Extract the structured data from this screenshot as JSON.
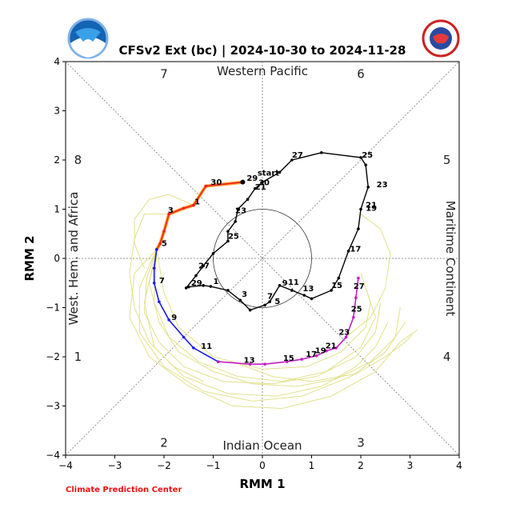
{
  "chart_data": {
    "type": "line",
    "title": "CFSv2 Ext (bc) | 2024-10-30 to 2024-11-28",
    "xlabel": "RMM 1",
    "ylabel": "RMM 2",
    "xlim": [
      -4,
      4
    ],
    "ylim": [
      -4,
      4
    ],
    "xticks": [
      "−4",
      "−3",
      "−2",
      "−1",
      "0",
      "1",
      "2",
      "3",
      "4"
    ],
    "yticks": [
      "−4",
      "−3",
      "−2",
      "−1",
      "0",
      "1",
      "2",
      "3",
      "4"
    ],
    "phases": [
      {
        "label": "1",
        "x": -3.75,
        "y": -2.0
      },
      {
        "label": "2",
        "x": -2.0,
        "y": -3.75
      },
      {
        "label": "3",
        "x": 2.0,
        "y": -3.75
      },
      {
        "label": "4",
        "x": 3.75,
        "y": -2.0
      },
      {
        "label": "5",
        "x": 3.75,
        "y": 2.0
      },
      {
        "label": "6",
        "x": 2.0,
        "y": 3.75
      },
      {
        "label": "7",
        "x": -2.0,
        "y": 3.75
      },
      {
        "label": "8",
        "x": -3.75,
        "y": 2.0
      }
    ],
    "regions": {
      "top": "Western Pacific",
      "bottom": "Indian Ocean",
      "left": "West. Hem. and Africa",
      "right": "Maritime Continent"
    },
    "credit": "Climate Prediction Center",
    "logos": {
      "left": "NOAA",
      "right": "NATIONAL WEATHER SERVICE"
    },
    "colors": {
      "observed": "#000000",
      "fc_red": "#ee2222",
      "fc_orange": "#ff8800",
      "fc_blue": "#1a1aee",
      "fc_magenta": "#c020c0",
      "ensemble": "#dede80"
    },
    "observed": {
      "points": [
        [
          -1.5,
          -0.58
        ],
        [
          -1.2,
          -0.55
        ],
        [
          -1.05,
          -0.57
        ],
        [
          -0.7,
          -0.65
        ],
        [
          -0.45,
          -0.85
        ],
        [
          -0.25,
          -1.05
        ],
        [
          0.05,
          -0.95
        ],
        [
          0.15,
          -0.88
        ],
        [
          0.35,
          -0.55
        ],
        [
          0.6,
          -0.65
        ],
        [
          0.85,
          -0.75
        ],
        [
          1.0,
          -0.82
        ],
        [
          1.4,
          -0.65
        ],
        [
          1.55,
          -0.4
        ],
        [
          1.75,
          0.15
        ],
        [
          1.95,
          0.6
        ],
        [
          2.0,
          1.0
        ],
        [
          2.15,
          1.45
        ],
        [
          2.1,
          1.9
        ],
        [
          2.0,
          2.05
        ],
        [
          1.2,
          2.15
        ],
        [
          0.6,
          2.0
        ],
        [
          0.35,
          1.75
        ],
        [
          0.0,
          1.55
        ],
        [
          -0.15,
          1.42
        ],
        [
          -0.3,
          1.2
        ],
        [
          -0.5,
          1.0
        ],
        [
          -0.55,
          0.75
        ],
        [
          -0.7,
          0.55
        ],
        [
          -0.7,
          0.35
        ],
        [
          -1.0,
          0.1
        ],
        [
          -1.2,
          -0.15
        ],
        [
          -1.35,
          -0.35
        ],
        [
          -1.55,
          -0.6
        ]
      ],
      "labels": [
        {
          "text": "29",
          "x": -1.45,
          "y": -0.55
        },
        {
          "text": "1",
          "x": -1.0,
          "y": -0.52
        },
        {
          "text": "3",
          "x": -0.42,
          "y": -0.78
        },
        {
          "text": "5",
          "x": 0.25,
          "y": -0.93
        },
        {
          "text": "7",
          "x": 0.1,
          "y": -0.82
        },
        {
          "text": "9",
          "x": 0.4,
          "y": -0.55
        },
        {
          "text": "11",
          "x": 0.52,
          "y": -0.54
        },
        {
          "text": "13",
          "x": 0.82,
          "y": -0.67
        },
        {
          "text": "15",
          "x": 1.4,
          "y": -0.6
        },
        {
          "text": "17",
          "x": 1.78,
          "y": 0.14
        },
        {
          "text": "19",
          "x": 2.1,
          "y": 0.97
        },
        {
          "text": "21",
          "x": 2.1,
          "y": 1.03
        },
        {
          "text": "23",
          "x": 2.32,
          "y": 1.45
        },
        {
          "text": "25",
          "x": 2.02,
          "y": 2.05
        },
        {
          "text": "27",
          "x": 0.6,
          "y": 2.05
        },
        {
          "text": "start",
          "x": -0.1,
          "y": 1.68
        },
        {
          "text": "29",
          "x": -0.32,
          "y": 1.58
        },
        {
          "text": "30",
          "x": -0.08,
          "y": 1.49
        },
        {
          "text": "21",
          "x": -0.15,
          "y": 1.4
        },
        {
          "text": "23",
          "x": -0.55,
          "y": 0.92
        },
        {
          "text": "25",
          "x": -0.7,
          "y": 0.4
        },
        {
          "text": "27",
          "x": -1.3,
          "y": -0.2
        }
      ]
    },
    "forecast_head": {
      "points": [
        [
          -0.4,
          1.55
        ],
        [
          -1.15,
          1.47
        ],
        [
          -1.4,
          1.08
        ],
        [
          -1.6,
          1.02
        ],
        [
          -1.9,
          0.9
        ],
        [
          -2.0,
          0.55
        ],
        [
          -2.08,
          0.3
        ],
        [
          -2.15,
          0.18
        ]
      ],
      "labels": [
        {
          "text": "30",
          "x": -1.05,
          "y": 1.5
        },
        {
          "text": "1",
          "x": -1.38,
          "y": 1.1
        },
        {
          "text": "3",
          "x": -1.92,
          "y": 0.93
        },
        {
          "text": "5",
          "x": -2.05,
          "y": 0.25
        }
      ]
    },
    "forecast_blue": {
      "points": [
        [
          -2.15,
          0.18
        ],
        [
          -2.2,
          -0.2
        ],
        [
          -2.2,
          -0.5
        ],
        [
          -2.1,
          -0.88
        ],
        [
          -1.9,
          -1.25
        ],
        [
          -1.6,
          -1.6
        ],
        [
          -1.4,
          -1.82
        ],
        [
          -0.9,
          -2.1
        ]
      ],
      "labels": [
        {
          "text": "7",
          "x": -2.1,
          "y": -0.5
        },
        {
          "text": "9",
          "x": -1.85,
          "y": -1.25
        },
        {
          "text": "11",
          "x": -1.25,
          "y": -1.84
        }
      ]
    },
    "forecast_magenta": {
      "points": [
        [
          -0.9,
          -2.1
        ],
        [
          -0.25,
          -2.15
        ],
        [
          0.05,
          -2.15
        ],
        [
          0.5,
          -2.1
        ],
        [
          0.8,
          -2.05
        ],
        [
          1.1,
          -1.98
        ],
        [
          1.3,
          -1.88
        ],
        [
          1.5,
          -1.82
        ],
        [
          1.7,
          -1.6
        ],
        [
          1.85,
          -1.2
        ],
        [
          1.9,
          -0.8
        ],
        [
          1.95,
          -0.4
        ]
      ],
      "labels": [
        {
          "text": "13",
          "x": -0.38,
          "y": -2.12
        },
        {
          "text": "15",
          "x": 0.42,
          "y": -2.08
        },
        {
          "text": "17",
          "x": 0.88,
          "y": -2.0
        },
        {
          "text": "19",
          "x": 1.07,
          "y": -1.93
        },
        {
          "text": "21",
          "x": 1.28,
          "y": -1.83
        },
        {
          "text": "23",
          "x": 1.55,
          "y": -1.55
        },
        {
          "text": "25",
          "x": 1.8,
          "y": -1.08
        },
        {
          "text": "27",
          "x": 1.85,
          "y": -0.62
        }
      ]
    },
    "ensemble": [
      [
        [
          -2.15,
          0.18
        ],
        [
          -2.35,
          -0.4
        ],
        [
          -2.4,
          -1.1
        ],
        [
          -2.1,
          -1.7
        ],
        [
          -1.6,
          -2.2
        ],
        [
          -0.8,
          -2.5
        ],
        [
          0.2,
          -2.55
        ],
        [
          1.1,
          -2.4
        ],
        [
          1.9,
          -2.0
        ],
        [
          2.3,
          -1.5
        ],
        [
          2.4,
          -0.9
        ]
      ],
      [
        [
          -2.15,
          0.18
        ],
        [
          -2.5,
          -0.6
        ],
        [
          -2.5,
          -1.5
        ],
        [
          -2.0,
          -2.2
        ],
        [
          -1.2,
          -2.7
        ],
        [
          -0.2,
          -2.9
        ],
        [
          0.8,
          -2.8
        ],
        [
          1.8,
          -2.4
        ],
        [
          2.5,
          -1.9
        ],
        [
          2.9,
          -1.3
        ]
      ],
      [
        [
          -2.15,
          0.18
        ],
        [
          -2.2,
          -0.9
        ],
        [
          -1.9,
          -1.6
        ],
        [
          -1.3,
          -2.1
        ],
        [
          -0.5,
          -2.4
        ],
        [
          0.4,
          -2.5
        ],
        [
          1.3,
          -2.3
        ],
        [
          2.0,
          -1.8
        ],
        [
          2.3,
          -1.2
        ],
        [
          2.1,
          -0.6
        ]
      ],
      [
        [
          -2.15,
          0.18
        ],
        [
          -2.6,
          -0.3
        ],
        [
          -2.7,
          -1.2
        ],
        [
          -2.3,
          -2.0
        ],
        [
          -1.5,
          -2.6
        ],
        [
          -0.6,
          -3.0
        ],
        [
          0.4,
          -3.05
        ],
        [
          1.4,
          -2.8
        ],
        [
          2.3,
          -2.3
        ],
        [
          2.8,
          -1.7
        ],
        [
          3.15,
          -1.45
        ]
      ],
      [
        [
          -2.15,
          0.18
        ],
        [
          -2.0,
          -0.7
        ],
        [
          -1.7,
          -1.4
        ],
        [
          -1.0,
          -2.0
        ],
        [
          0.0,
          -2.25
        ],
        [
          0.9,
          -2.2
        ],
        [
          1.6,
          -1.9
        ],
        [
          2.1,
          -1.4
        ],
        [
          2.2,
          -0.9
        ],
        [
          2.0,
          -0.3
        ]
      ],
      [
        [
          -2.15,
          0.18
        ],
        [
          -2.4,
          -0.9
        ],
        [
          -2.2,
          -1.8
        ],
        [
          -1.6,
          -2.4
        ],
        [
          -0.7,
          -2.75
        ],
        [
          0.3,
          -2.8
        ],
        [
          1.2,
          -2.6
        ],
        [
          1.9,
          -2.2
        ],
        [
          2.3,
          -1.8
        ],
        [
          2.55,
          -1.3
        ]
      ],
      [
        [
          -1.9,
          0.9
        ],
        [
          -2.4,
          0.9
        ],
        [
          -2.6,
          0.4
        ],
        [
          -2.7,
          -0.3
        ],
        [
          -2.6,
          -1.0
        ],
        [
          -2.3,
          -1.7
        ],
        [
          -1.8,
          -2.2
        ],
        [
          -1.2,
          -2.5
        ]
      ],
      [
        [
          -1.4,
          1.08
        ],
        [
          -1.9,
          1.3
        ],
        [
          -2.3,
          1.2
        ],
        [
          -2.6,
          0.8
        ],
        [
          -2.6,
          0.3
        ],
        [
          -2.4,
          -0.2
        ]
      ],
      [
        [
          -0.6,
          -2.1
        ],
        [
          0.2,
          -2.4
        ],
        [
          1.0,
          -2.5
        ],
        [
          1.9,
          -2.35
        ],
        [
          2.5,
          -2.0
        ],
        [
          2.9,
          -1.7
        ],
        [
          3.05,
          -1.55
        ]
      ],
      [
        [
          1.7,
          -1.6
        ],
        [
          2.2,
          -1.2
        ],
        [
          2.5,
          -0.6
        ],
        [
          2.6,
          0.1
        ],
        [
          2.4,
          0.6
        ],
        [
          2.0,
          0.9
        ]
      ],
      [
        [
          -2.15,
          0.18
        ],
        [
          -2.3,
          -0.5
        ],
        [
          -2.1,
          -1.3
        ],
        [
          -1.7,
          -1.9
        ],
        [
          -1.0,
          -2.3
        ],
        [
          -0.2,
          -2.55
        ],
        [
          0.7,
          -2.6
        ],
        [
          1.5,
          -2.45
        ],
        [
          2.2,
          -2.1
        ],
        [
          2.7,
          -1.6
        ],
        [
          2.8,
          -1.0
        ]
      ]
    ]
  }
}
